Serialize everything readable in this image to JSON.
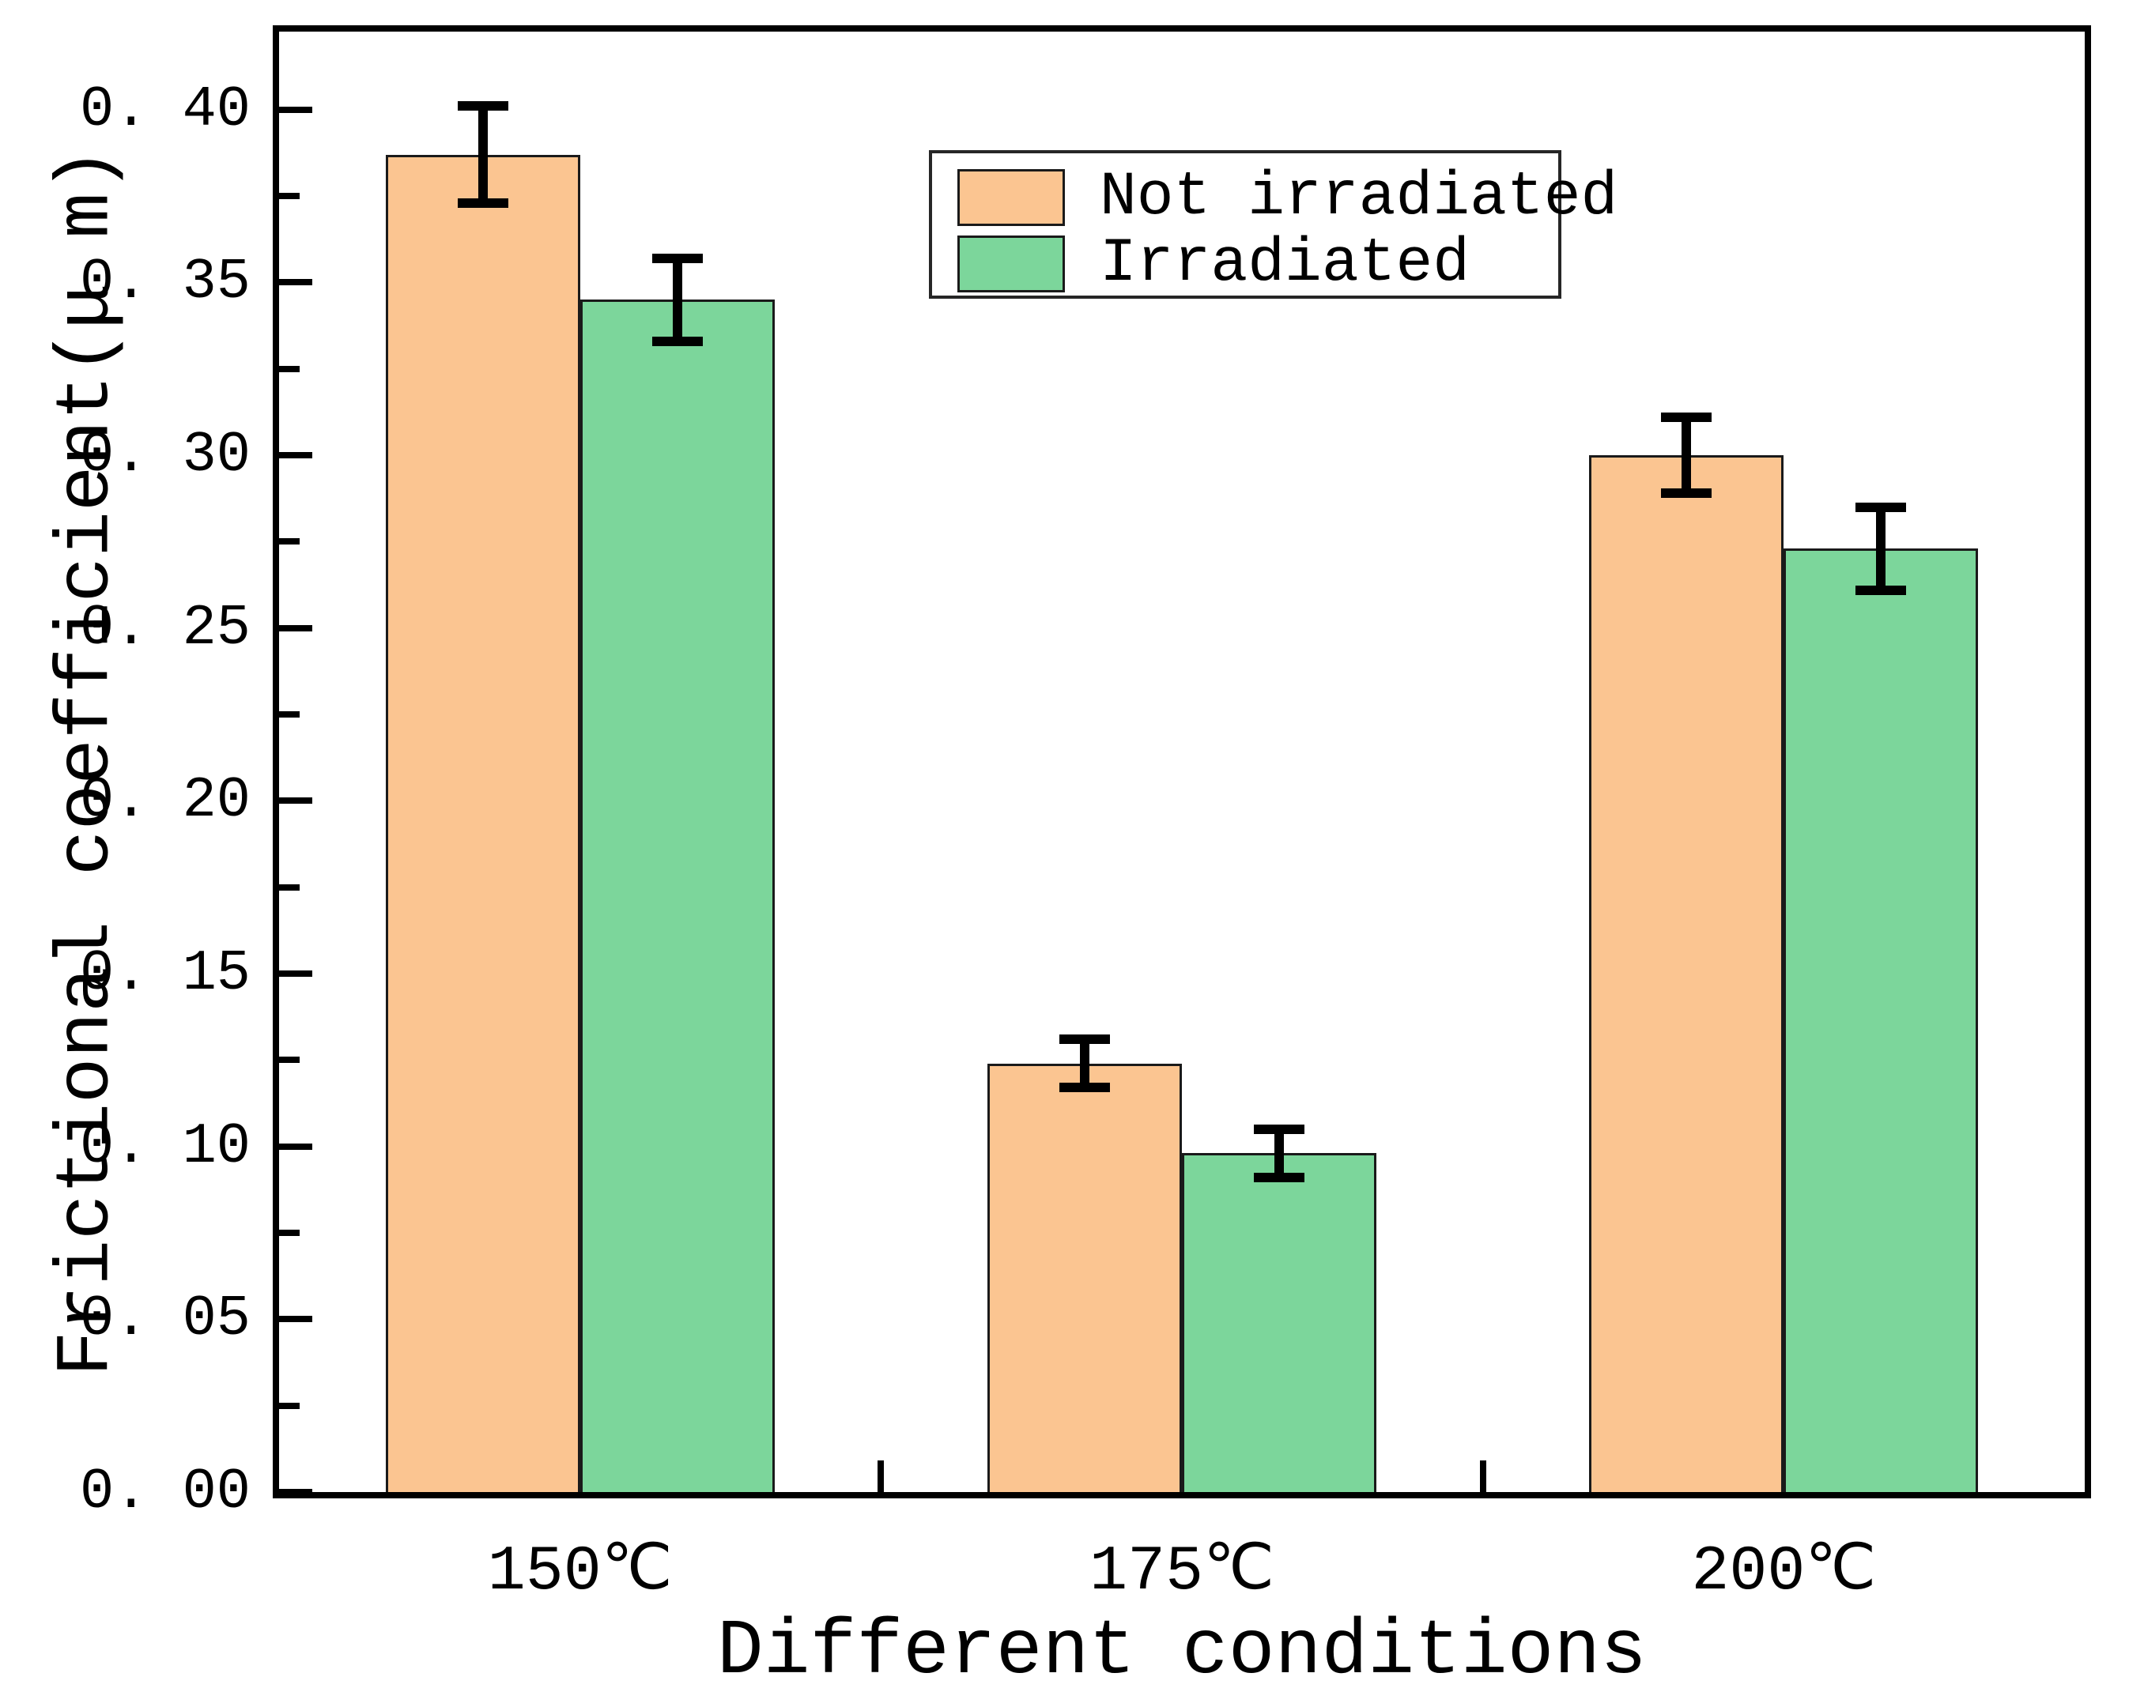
{
  "figure": {
    "background": "#ffffff",
    "text_color": "#000000"
  },
  "chart_data": {
    "type": "bar",
    "title": "",
    "xlabel": "Different conditions",
    "ylabel": "Frictional coefficient(μ m)",
    "categories": [
      "150℃",
      "175℃",
      "200℃"
    ],
    "series": [
      {
        "name": "Not irradiated",
        "color": "#FBC591",
        "edge_color": "#1a1a1a",
        "values": [
          0.387,
          0.124,
          0.3
        ],
        "errors": [
          0.014,
          0.007,
          0.011
        ]
      },
      {
        "name": "Irradiated",
        "color": "#7CD69B",
        "edge_color": "#1a1a1a",
        "values": [
          0.345,
          0.098,
          0.273
        ],
        "errors": [
          0.012,
          0.007,
          0.012
        ]
      }
    ],
    "error_bar_color": "#000000",
    "ylim": [
      0,
      0.4226
    ],
    "yticks": [
      {
        "value": 0.0,
        "label": "0. 00"
      },
      {
        "value": 0.05,
        "label": "0. 05"
      },
      {
        "value": 0.1,
        "label": "0. 10"
      },
      {
        "value": 0.15,
        "label": "0. 15"
      },
      {
        "value": 0.2,
        "label": "0. 20"
      },
      {
        "value": 0.25,
        "label": "0. 25"
      },
      {
        "value": 0.3,
        "label": "0. 30"
      },
      {
        "value": 0.35,
        "label": "0. 35"
      },
      {
        "value": 0.4,
        "label": "0. 40"
      }
    ],
    "yticks_minor": [
      0.025,
      0.075,
      0.125,
      0.175,
      0.225,
      0.275,
      0.325,
      0.375
    ],
    "grid": false,
    "legend_position": "upper-center",
    "legend": [
      "Not irradiated",
      "Irradiated"
    ]
  }
}
